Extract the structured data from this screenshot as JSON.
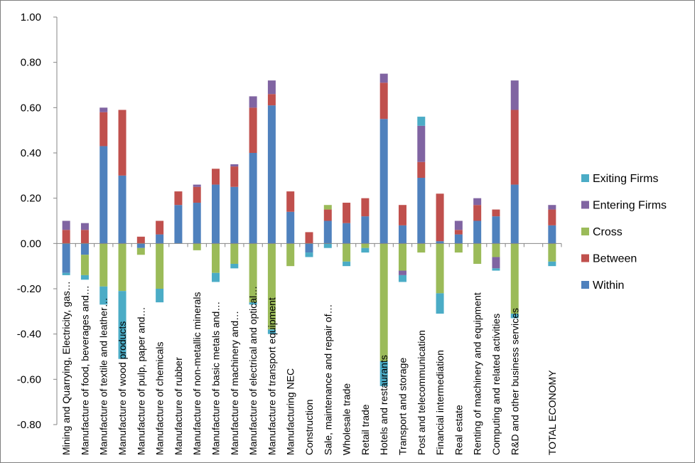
{
  "chart_data": {
    "type": "bar",
    "stacked": true,
    "ylim": [
      -0.8,
      1.0
    ],
    "yticks": [
      "1.00",
      "0.80",
      "0.60",
      "0.40",
      "0.20",
      "0.00",
      "-0.20",
      "-0.40",
      "-0.60",
      "-0.80"
    ],
    "grid": false,
    "legend_position": "right",
    "categories": [
      "Mining and Quarrying, Electricity, gas…",
      "Manufacture of food, beverages and…",
      "Manufacture of textile and leather…",
      "Manufacture of wood products",
      "Manufacture of pulp, paper and…",
      "Manufacture of chemicals",
      "Manufacture of rubber",
      "Manufacture of non-metallic minerals",
      "Manufacture of basic metals and…",
      "Manufacture of machinery and…",
      "Manufacture of electrical and optical…",
      "Manufacture of transport equipment",
      "Manufacturing NEC",
      "Construction",
      "Sale, maintenance and repair of…",
      "Wholesale trade",
      "Retail trade",
      "Hotels and restaurants",
      "Transport and storage",
      "Post and telecommunication",
      "Financial intermediation",
      "Real estate",
      "Renting of machinery and equipment",
      "Computing and related activities",
      "R&D and other business services",
      "",
      "TOTAL ECONOMY"
    ],
    "series": [
      {
        "name": "Within",
        "color": "#4f81bd",
        "values": [
          -0.13,
          -0.05,
          0.43,
          0.3,
          -0.02,
          0.04,
          0.17,
          0.18,
          0.26,
          0.25,
          0.4,
          0.61,
          0.14,
          -0.04,
          0.1,
          0.09,
          0.12,
          0.55,
          0.08,
          0.29,
          0.01,
          0.04,
          0.1,
          0.12,
          0.26,
          0,
          0.08
        ]
      },
      {
        "name": "Between",
        "color": "#c0504d",
        "values": [
          0.06,
          0.06,
          0.15,
          0.29,
          0.03,
          0.06,
          0.06,
          0.07,
          0.07,
          0.09,
          0.2,
          0.05,
          0.09,
          0.05,
          0.05,
          0.09,
          0.08,
          0.16,
          0.09,
          0.07,
          0.21,
          0.02,
          0.07,
          0.03,
          0.33,
          0,
          0.07
        ]
      },
      {
        "name": "Cross",
        "color": "#9bbb59",
        "values": [
          0.0,
          -0.09,
          -0.19,
          -0.21,
          -0.03,
          -0.2,
          0.0,
          -0.03,
          -0.13,
          -0.09,
          -0.26,
          -0.38,
          -0.1,
          0.0,
          0.02,
          -0.08,
          -0.02,
          -0.52,
          -0.12,
          -0.04,
          -0.22,
          -0.04,
          -0.09,
          -0.06,
          -0.31,
          0,
          -0.08
        ]
      },
      {
        "name": "Entering Firms",
        "color": "#8064a2",
        "values": [
          0.04,
          0.03,
          0.02,
          0.0,
          0.0,
          0.0,
          0.0,
          0.01,
          0.0,
          0.01,
          0.05,
          0.06,
          0.0,
          0.0,
          0.0,
          0.0,
          0.0,
          0.04,
          -0.02,
          0.16,
          0.0,
          0.04,
          0.03,
          -0.05,
          0.13,
          0,
          0.02
        ]
      },
      {
        "name": "Exiting Firms",
        "color": "#4bacc6",
        "values": [
          -0.01,
          -0.02,
          -0.08,
          -0.3,
          0.0,
          -0.06,
          0.0,
          0.0,
          -0.04,
          -0.02,
          -0.01,
          -0.02,
          0.0,
          -0.02,
          -0.02,
          -0.02,
          -0.02,
          -0.11,
          -0.03,
          0.04,
          -0.09,
          0.0,
          0.0,
          -0.01,
          -0.02,
          0,
          -0.02
        ]
      }
    ],
    "legend_order": [
      "Exiting Firms",
      "Entering Firms",
      "Cross",
      "Between",
      "Within"
    ]
  }
}
